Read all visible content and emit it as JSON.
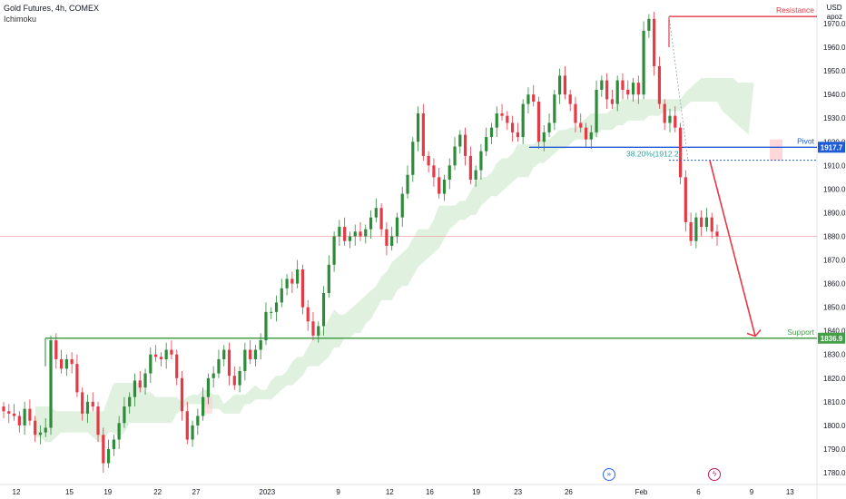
{
  "header": {
    "title": "Gold Futures, 4h, COMEX",
    "indicator": "Ichimoku"
  },
  "axis_unit": {
    "line1": "USD",
    "line2": "apoz"
  },
  "icons": {
    "replay_icon": "double-chevron-right-icon",
    "event_icon": "lightning-icon"
  },
  "colors": {
    "up": "#26a69a",
    "up_body": "#2e8b3a",
    "down": "#e53946",
    "cloud": "#a5d6a7",
    "cloud_bear": "#ffcdd2",
    "resistance": "#e53946",
    "pivot": "#1e5bd8",
    "support": "#43a047",
    "arrow": "#e53946"
  },
  "chart_data": {
    "type": "candlestick",
    "ylim": [
      1775,
      1980
    ],
    "y_ticks": [
      1780,
      1790,
      1800,
      1810,
      1820,
      1830,
      1840,
      1850,
      1860,
      1870,
      1880,
      1890,
      1900,
      1910,
      1920,
      1930,
      1940,
      1950,
      1960,
      1970
    ],
    "y_tick_labels": [
      "1780.0",
      "1790.0",
      "1800.0",
      "1810.0",
      "1820.0",
      "1830.0",
      "1840.0",
      "1850.0",
      "1860.0",
      "1870.0",
      "1880.0",
      "1890.0",
      "1900.0",
      "1910.0",
      "1920.0",
      "1930.0",
      "1940.0",
      "1950.0",
      "1960.0",
      "1970.0"
    ],
    "x_labels": [
      {
        "label": "12",
        "at": 0.02
      },
      {
        "label": "15",
        "at": 0.085
      },
      {
        "label": "19",
        "at": 0.132
      },
      {
        "label": "22",
        "at": 0.193
      },
      {
        "label": "27",
        "at": 0.24
      },
      {
        "label": "2023",
        "at": 0.327
      },
      {
        "label": "9",
        "at": 0.414
      },
      {
        "label": "12",
        "at": 0.477
      },
      {
        "label": "16",
        "at": 0.526
      },
      {
        "label": "19",
        "at": 0.583
      },
      {
        "label": "23",
        "at": 0.634
      },
      {
        "label": "26",
        "at": 0.696
      },
      {
        "label": "Feb",
        "at": 0.785
      },
      {
        "label": "6",
        "at": 0.855
      },
      {
        "label": "9",
        "at": 0.92
      },
      {
        "label": "13",
        "at": 0.967
      }
    ],
    "closes": [
      1806,
      1805,
      1804,
      1800,
      1807,
      1802,
      1796,
      1797,
      1799,
      1836,
      1828,
      1824,
      1828,
      1826,
      1814,
      1805,
      1810,
      1808,
      1796,
      1784,
      1790,
      1794,
      1801,
      1808,
      1812,
      1819,
      1816,
      1822,
      1830,
      1829,
      1828,
      1832,
      1830,
      1820,
      1806,
      1794,
      1800,
      1804,
      1812,
      1820,
      1822,
      1828,
      1832,
      1821,
      1817,
      1823,
      1832,
      1828,
      1832,
      1836,
      1848,
      1848,
      1852,
      1858,
      1862,
      1860,
      1866,
      1850,
      1844,
      1838,
      1842,
      1856,
      1868,
      1880,
      1884,
      1878,
      1880,
      1882,
      1880,
      1883,
      1888,
      1892,
      1883,
      1876,
      1880,
      1888,
      1898,
      1906,
      1920,
      1932,
      1914,
      1910,
      1905,
      1898,
      1904,
      1910,
      1918,
      1923,
      1914,
      1904,
      1908,
      1916,
      1922,
      1926,
      1932,
      1931,
      1928,
      1924,
      1922,
      1936,
      1940,
      1937,
      1920,
      1924,
      1928,
      1940,
      1948,
      1940,
      1936,
      1928,
      1926,
      1921,
      1924,
      1942,
      1946,
      1938,
      1936,
      1946,
      1942,
      1940,
      1945,
      1940,
      1967,
      1972,
      1952,
      1936,
      1928,
      1931,
      1926,
      1905,
      1886,
      1878,
      1888,
      1884,
      1888,
      1882,
      1880
    ],
    "cloud_top": [
      1808,
      1808,
      1808,
      1808,
      1806,
      1806,
      1806,
      1806,
      1806,
      1806,
      1806,
      1806,
      1806,
      1806,
      1812,
      1818,
      1818,
      1818,
      1818,
      1818,
      1818,
      1814,
      1814,
      1812,
      1812,
      1812,
      1812,
      1812,
      1810,
      1812,
      1813,
      1813,
      1815,
      1815,
      1813,
      1813,
      1809,
      1811,
      1813,
      1813,
      1813,
      1815,
      1817,
      1815,
      1815,
      1819,
      1821,
      1821,
      1823,
      1827,
      1829,
      1829,
      1833,
      1837,
      1839,
      1841,
      1845,
      1849,
      1847,
      1847,
      1849,
      1851,
      1853,
      1855,
      1857,
      1859,
      1863,
      1865,
      1869,
      1871,
      1873,
      1875,
      1879,
      1883,
      1883,
      1883,
      1887,
      1893,
      1893,
      1893,
      1893,
      1895,
      1895,
      1899,
      1903,
      1905,
      1905,
      1907,
      1911,
      1913,
      1913,
      1915,
      1919,
      1919,
      1919,
      1919,
      1921,
      1921,
      1921,
      1923,
      1925,
      1925,
      1926,
      1926,
      1928,
      1930,
      1932,
      1932,
      1932,
      1932,
      1934,
      1936,
      1938,
      1938,
      1938,
      1938,
      1938,
      1938,
      1938,
      1938,
      1938,
      1938,
      1938,
      1938,
      1941,
      1943,
      1945,
      1947,
      1947,
      1947,
      1947,
      1947,
      1947,
      1947,
      1945,
      1945,
      1945,
      1945
    ],
    "cloud_bottom": [
      1795,
      1795,
      1793,
      1793,
      1795,
      1797,
      1797,
      1797,
      1797,
      1797,
      1797,
      1795,
      1793,
      1793,
      1797,
      1797,
      1795,
      1797,
      1801,
      1801,
      1801,
      1801,
      1801,
      1801,
      1801,
      1801,
      1801,
      1805,
      1807,
      1809,
      1809,
      1809,
      1809,
      1807,
      1807,
      1807,
      1805,
      1805,
      1805,
      1805,
      1809,
      1809,
      1811,
      1811,
      1811,
      1811,
      1813,
      1815,
      1817,
      1817,
      1819,
      1821,
      1825,
      1825,
      1825,
      1827,
      1829,
      1833,
      1833,
      1837,
      1837,
      1839,
      1839,
      1843,
      1845,
      1849,
      1853,
      1853,
      1853,
      1857,
      1859,
      1859,
      1863,
      1867,
      1869,
      1871,
      1873,
      1875,
      1879,
      1883,
      1885,
      1887,
      1887,
      1889,
      1889,
      1893,
      1895,
      1897,
      1897,
      1899,
      1901,
      1903,
      1905,
      1905,
      1905,
      1909,
      1911,
      1911,
      1913,
      1915,
      1917,
      1917,
      1919,
      1921,
      1921,
      1921,
      1921,
      1923,
      1925,
      1925,
      1925,
      1927,
      1927,
      1929,
      1929,
      1929,
      1929,
      1931,
      1931,
      1931,
      1933,
      1933,
      1933,
      1933,
      1935,
      1937,
      1937,
      1937,
      1937,
      1937,
      1937,
      1933,
      1931,
      1929,
      1927,
      1925,
      1923
    ],
    "horizontal_levels": [
      {
        "name": "Resistance",
        "value": 1973.0
      },
      {
        "name": "Pivot",
        "value": 1917.7,
        "tag": "1917.7"
      },
      {
        "name": "Support",
        "value": 1836.9,
        "tag": "1836.9"
      }
    ],
    "current_price": 1880.0,
    "fib_label": "38.20%(1912.2)",
    "fib_value": 1912.2,
    "forecast_arrow": {
      "from_value": 1912.0,
      "to_value": 1837.0
    }
  }
}
